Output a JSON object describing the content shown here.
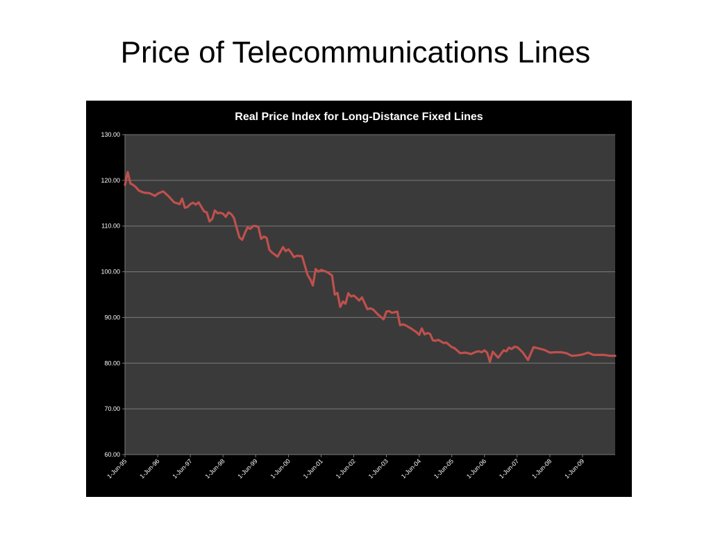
{
  "slide": {
    "title": "Price of Telecommunications Lines"
  },
  "colors": {
    "chart_background": "#000000",
    "plot_background": "#3a3a3a",
    "gridline": "#7a7a7a",
    "series_line": "#c0504d",
    "text": "#ffffff"
  },
  "chart_data": {
    "type": "line",
    "title": "Real Price Index for Long-Distance Fixed Lines",
    "xlabel": "",
    "ylabel": "",
    "ylim": [
      60,
      130
    ],
    "y_ticks": [
      "60.00",
      "70.00",
      "80.00",
      "90.00",
      "100.00",
      "110.00",
      "120.00",
      "130.00"
    ],
    "x_tick_labels": [
      "1-Jun-95",
      "1-Jun-96",
      "1-Jun-97",
      "1-Jun-98",
      "1-Jun-99",
      "1-Jun-00",
      "1-Jun-01",
      "1-Jun-02",
      "1-Jun-03",
      "1-Jun-04",
      "1-Jun-05",
      "1-Jun-06",
      "1-Jun-07",
      "1-Jun-08",
      "1-Jun-09"
    ],
    "x_range": [
      "1995-06-01",
      "2010-06-01"
    ],
    "grid": true,
    "legend": "none",
    "series": [
      {
        "x": [
          "1995-06-01",
          "1995-07-01",
          "1995-08-01",
          "1995-09-01",
          "1995-10-01",
          "1995-11-01",
          "1995-12-01",
          "1996-01-01",
          "1996-03-01",
          "1996-05-01",
          "1996-06-01",
          "1996-08-01",
          "1996-10-01",
          "1996-12-01",
          "1997-02-01",
          "1997-03-01",
          "1997-04-01",
          "1997-05-01",
          "1997-06-01",
          "1997-07-01",
          "1997-08-01",
          "1997-09-01",
          "1997-11-01",
          "1997-12-01",
          "1998-01-01",
          "1998-02-01",
          "1998-03-01",
          "1998-04-01",
          "1998-05-01",
          "1998-06-01",
          "1998-07-01",
          "1998-08-01",
          "1998-09-01",
          "1998-10-01",
          "1998-12-01",
          "1999-01-01",
          "1999-02-01",
          "1999-03-01",
          "1999-04-01",
          "1999-05-01",
          "1999-06-01",
          "1999-07-01",
          "1999-08-01",
          "1999-09-01",
          "1999-10-01",
          "1999-11-01",
          "1999-12-01",
          "2000-02-01",
          "2000-04-01",
          "2000-05-01",
          "2000-06-01",
          "2000-07-01",
          "2000-08-01",
          "2000-09-01",
          "2000-11-01",
          "2001-01-01",
          "2001-02-01",
          "2001-03-01",
          "2001-04-01",
          "2001-05-01",
          "2001-06-01",
          "2001-08-01",
          "2001-10-01",
          "2001-11-01",
          "2001-12-01",
          "2002-01-01",
          "2002-02-01",
          "2002-03-01",
          "2002-04-01",
          "2002-05-01",
          "2002-06-01",
          "2002-07-01",
          "2002-08-01",
          "2002-09-01",
          "2002-11-01",
          "2002-12-01",
          "2003-01-01",
          "2003-03-01",
          "2003-05-01",
          "2003-06-01",
          "2003-07-01",
          "2003-08-01",
          "2003-10-01",
          "2003-11-01",
          "2003-12-01",
          "2004-01-01",
          "2004-03-01",
          "2004-05-01",
          "2004-06-01",
          "2004-07-01",
          "2004-08-01",
          "2004-09-01",
          "2004-10-01",
          "2004-11-01",
          "2004-12-01",
          "2005-01-01",
          "2005-03-01",
          "2005-04-01",
          "2005-06-01",
          "2005-07-01",
          "2005-09-01",
          "2005-11-01",
          "2006-01-01",
          "2006-03-01",
          "2006-04-01",
          "2006-05-01",
          "2006-06-01",
          "2006-07-01",
          "2006-08-01",
          "2006-09-01",
          "2006-11-01",
          "2007-01-01",
          "2007-02-01",
          "2007-03-01",
          "2007-04-01",
          "2007-05-01",
          "2007-06-01",
          "2007-07-01",
          "2007-08-01",
          "2007-10-01",
          "2007-12-01",
          "2008-02-01",
          "2008-04-01",
          "2008-06-01",
          "2008-08-01",
          "2008-10-01",
          "2008-12-01",
          "2009-02-01",
          "2009-04-01",
          "2009-06-01",
          "2009-08-01",
          "2009-10-01",
          "2009-12-01",
          "2010-02-01",
          "2010-04-01",
          "2010-06-01"
        ],
        "values": [
          119.0,
          121.8,
          119.3,
          119.0,
          118.5,
          117.8,
          117.5,
          117.3,
          117.2,
          116.6,
          117.1,
          117.6,
          116.5,
          115.2,
          114.8,
          116.0,
          114.0,
          114.2,
          114.8,
          115.1,
          114.7,
          115.2,
          113.2,
          113.0,
          111.0,
          111.6,
          113.4,
          112.8,
          112.9,
          112.7,
          112.0,
          113.0,
          112.6,
          111.8,
          107.5,
          107.0,
          108.5,
          109.7,
          109.4,
          110.0,
          110.0,
          109.8,
          107.2,
          107.7,
          107.4,
          104.8,
          104.2,
          103.3,
          105.4,
          104.5,
          104.9,
          104.2,
          103.2,
          103.5,
          103.4,
          99.3,
          98.3,
          97.0,
          100.6,
          100.0,
          100.4,
          100.0,
          99.2,
          95.0,
          95.4,
          92.3,
          93.5,
          93.0,
          95.3,
          94.6,
          94.8,
          94.3,
          93.7,
          94.4,
          91.8,
          92.0,
          91.8,
          90.6,
          89.6,
          91.3,
          91.4,
          91.0,
          91.3,
          88.3,
          88.5,
          88.3,
          87.6,
          86.8,
          86.2,
          87.6,
          86.3,
          86.6,
          86.4,
          85.0,
          84.9,
          85.1,
          84.4,
          84.5,
          83.5,
          83.3,
          82.2,
          82.3,
          82.0,
          82.5,
          82.6,
          82.4,
          82.8,
          82.3,
          80.3,
          82.5,
          81.2,
          82.8,
          82.6,
          83.4,
          83.1,
          83.6,
          83.5,
          83.0,
          82.4,
          80.7,
          83.5,
          83.2,
          82.9,
          82.3,
          82.4,
          82.4,
          82.2,
          81.6,
          81.7,
          81.9,
          82.3,
          81.8,
          81.8,
          81.8,
          81.6,
          81.6
        ]
      }
    ]
  }
}
